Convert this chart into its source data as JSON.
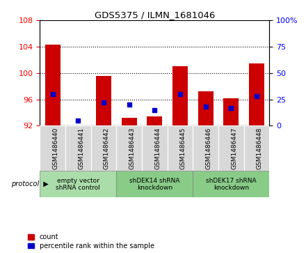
{
  "title": "GDS5375 / ILMN_1681046",
  "samples": [
    "GSM1486440",
    "GSM1486441",
    "GSM1486442",
    "GSM1486443",
    "GSM1486444",
    "GSM1486445",
    "GSM1486446",
    "GSM1486447",
    "GSM1486448"
  ],
  "count_values": [
    104.3,
    91.8,
    99.5,
    93.2,
    93.4,
    101.0,
    97.2,
    96.2,
    101.5
  ],
  "percentile_values": [
    30,
    5,
    22,
    20,
    15,
    30,
    18,
    17,
    28
  ],
  "ylim_left": [
    92,
    108
  ],
  "ylim_right": [
    0,
    100
  ],
  "yticks_left": [
    92,
    96,
    100,
    104,
    108
  ],
  "yticks_right": [
    0,
    25,
    50,
    75,
    100
  ],
  "ytick_labels_right": [
    "0",
    "25",
    "50",
    "75",
    "100%"
  ],
  "bar_color": "#cc0000",
  "dot_color": "#0000cc",
  "plot_bg": "#ffffff",
  "sample_cell_color": "#d8d8d8",
  "protocol_groups": [
    {
      "label": "empty vector\nshRNA control",
      "start": 0,
      "end": 3,
      "color": "#aaddaa"
    },
    {
      "label": "shDEK14 shRNA\nknockdown",
      "start": 3,
      "end": 6,
      "color": "#88cc88"
    },
    {
      "label": "shDEK17 shRNA\nknockdown",
      "start": 6,
      "end": 9,
      "color": "#88cc88"
    }
  ],
  "legend_items": [
    {
      "label": "count",
      "color": "#cc0000"
    },
    {
      "label": "percentile rank within the sample",
      "color": "#0000cc"
    }
  ],
  "base_value": 92
}
